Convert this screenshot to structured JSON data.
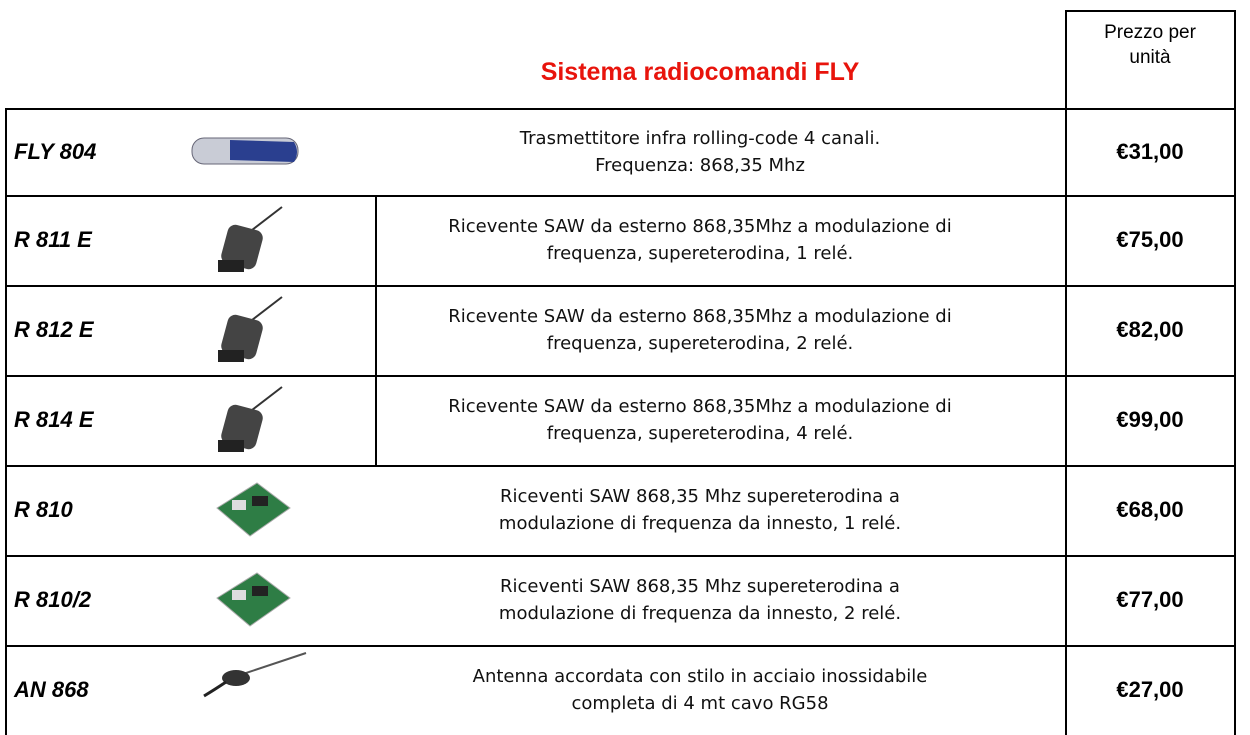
{
  "header": {
    "title": "Sistema radiocomandi FLY",
    "price_heading": [
      "Prezzo per",
      "unità"
    ]
  },
  "rows": [
    {
      "code": "FLY 804",
      "description": [
        "Trasmettitore infra rolling-code 4 canali.",
        "Frequenza: 868,35 Mhz"
      ],
      "price": "€31,00"
    },
    {
      "code": "R 811 E",
      "description": [
        "Ricevente SAW da esterno 868,35Mhz a modulazione di",
        "frequenza, supereterodina, 1 relé."
      ],
      "price": "€75,00"
    },
    {
      "code": "R 812 E",
      "description": [
        "Ricevente SAW da esterno 868,35Mhz a modulazione di",
        "frequenza, supereterodina, 2 relé."
      ],
      "price": "€82,00"
    },
    {
      "code": "R 814 E",
      "description": [
        "Ricevente SAW da esterno 868,35Mhz a modulazione di",
        "frequenza, supereterodina, 4 relé."
      ],
      "price": "€99,00"
    },
    {
      "code": "R 810",
      "description": [
        "Riceventi SAW 868,35 Mhz supereterodina a",
        "modulazione di frequenza da innesto, 1 relé."
      ],
      "price": "€68,00"
    },
    {
      "code": "R 810/2",
      "description": [
        "Riceventi SAW 868,35 Mhz supereterodina a",
        "modulazione di frequenza da innesto, 2 relé."
      ],
      "price": "€77,00"
    },
    {
      "code": "AN 868",
      "description": [
        "Antenna accordata con stilo in acciaio inossidabile",
        "completa di 4 mt cavo RG58"
      ],
      "price": "€27,00"
    }
  ]
}
